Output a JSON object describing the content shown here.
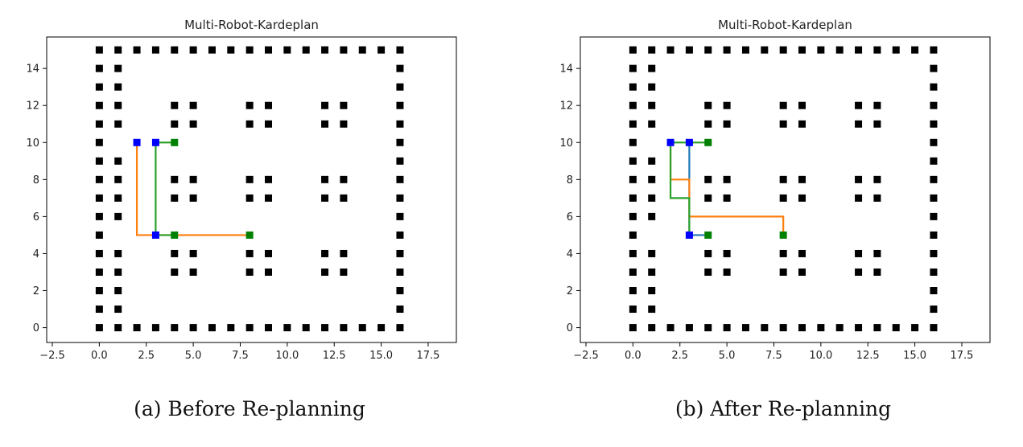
{
  "chart_data": [
    {
      "type": "scatter",
      "title": "Multi-Robot-Kardeplan",
      "caption": "(a) Before Re-planning",
      "xlim": [
        -2.8,
        19
      ],
      "ylim": [
        -0.8,
        15.7
      ],
      "xticks": [
        -2.5,
        0.0,
        2.5,
        5.0,
        7.5,
        10.0,
        12.5,
        15.0,
        17.5
      ],
      "xtick_labels": [
        "−2.5",
        "0.0",
        "2.5",
        "5.0",
        "7.5",
        "10.0",
        "12.5",
        "15.0",
        "17.5"
      ],
      "yticks": [
        0,
        2,
        4,
        6,
        8,
        10,
        12,
        14
      ],
      "ytick_labels": [
        "0",
        "2",
        "4",
        "6",
        "8",
        "10",
        "12",
        "14"
      ],
      "grid": false,
      "legend": "none",
      "colors": {
        "obstacle": "#000000",
        "start": "#0000ff",
        "goal": "#008000",
        "path1": "#1f77b4",
        "path2": "#ff7f0e",
        "path3": "#2ca02c"
      },
      "obstacles": {
        "top_row": {
          "y": 15,
          "x_from": 0,
          "x_to": 16
        },
        "bottom_row": {
          "y": 0,
          "x_from": 0,
          "x_to": 16
        },
        "right_col": {
          "x": 16,
          "y_from": 0,
          "y_to": 15
        },
        "left_col": {
          "x": 0,
          "y_from": 0,
          "y_to": 15
        },
        "second_col": {
          "x": 1,
          "y": [
            0,
            1,
            2,
            3,
            4,
            6,
            7,
            8,
            9,
            11,
            12,
            13,
            14,
            15
          ]
        },
        "shelf_x": [
          4,
          5,
          8,
          9,
          12,
          13
        ],
        "shelf_y": [
          3,
          4,
          7,
          8,
          11,
          12
        ]
      },
      "paths": [
        {
          "color": "path2",
          "points": [
            [
              2,
              10
            ],
            [
              2,
              5
            ],
            [
              8,
              5
            ]
          ]
        },
        {
          "color": "path3",
          "points": [
            [
              4,
              10
            ],
            [
              3,
              10
            ],
            [
              3,
              5
            ],
            [
              4,
              5
            ]
          ]
        }
      ],
      "starts": [
        [
          2,
          10
        ],
        [
          3,
          10
        ],
        [
          3,
          5
        ]
      ],
      "goals": [
        [
          4,
          10
        ],
        [
          4,
          5
        ],
        [
          8,
          5
        ]
      ]
    },
    {
      "type": "scatter",
      "title": "Multi-Robot-Kardeplan",
      "caption": "(b) After Re-planning",
      "xlim": [
        -2.8,
        19
      ],
      "ylim": [
        -0.8,
        15.7
      ],
      "xticks": [
        -2.5,
        0.0,
        2.5,
        5.0,
        7.5,
        10.0,
        12.5,
        15.0,
        17.5
      ],
      "xtick_labels": [
        "−2.5",
        "0.0",
        "2.5",
        "5.0",
        "7.5",
        "10.0",
        "12.5",
        "15.0",
        "17.5"
      ],
      "yticks": [
        0,
        2,
        4,
        6,
        8,
        10,
        12,
        14
      ],
      "ytick_labels": [
        "0",
        "2",
        "4",
        "6",
        "8",
        "10",
        "12",
        "14"
      ],
      "grid": false,
      "legend": "none",
      "colors": {
        "obstacle": "#000000",
        "start": "#0000ff",
        "goal": "#008000",
        "path1": "#1f77b4",
        "path2": "#ff7f0e",
        "path3": "#2ca02c"
      },
      "obstacles": {
        "top_row": {
          "y": 15,
          "x_from": 0,
          "x_to": 16
        },
        "bottom_row": {
          "y": 0,
          "x_from": 0,
          "x_to": 16
        },
        "right_col": {
          "x": 16,
          "y_from": 0,
          "y_to": 15
        },
        "left_col": {
          "x": 0,
          "y_from": 0,
          "y_to": 15
        },
        "second_col": {
          "x": 1,
          "y": [
            0,
            1,
            2,
            3,
            4,
            6,
            7,
            8,
            9,
            11,
            12,
            13,
            14,
            15
          ]
        },
        "shelf_x": [
          4,
          5,
          8,
          9,
          12,
          13
        ],
        "shelf_y": [
          3,
          4,
          7,
          8,
          11,
          12
        ]
      },
      "paths": [
        {
          "color": "path1",
          "points": [
            [
              3,
              10
            ],
            [
              3,
              5
            ],
            [
              4,
              5
            ]
          ]
        },
        {
          "color": "path2",
          "points": [
            [
              2,
              10
            ],
            [
              2,
              8
            ],
            [
              3,
              8
            ],
            [
              3,
              6
            ],
            [
              8,
              6
            ],
            [
              8,
              5
            ]
          ]
        },
        {
          "color": "path3",
          "points": [
            [
              4,
              10
            ],
            [
              2,
              10
            ],
            [
              2,
              7
            ],
            [
              3,
              7
            ],
            [
              3,
              5
            ]
          ]
        }
      ],
      "starts": [
        [
          2,
          10
        ],
        [
          3,
          10
        ],
        [
          3,
          5
        ]
      ],
      "goals": [
        [
          4,
          10
        ],
        [
          4,
          5
        ],
        [
          8,
          5
        ]
      ]
    }
  ]
}
